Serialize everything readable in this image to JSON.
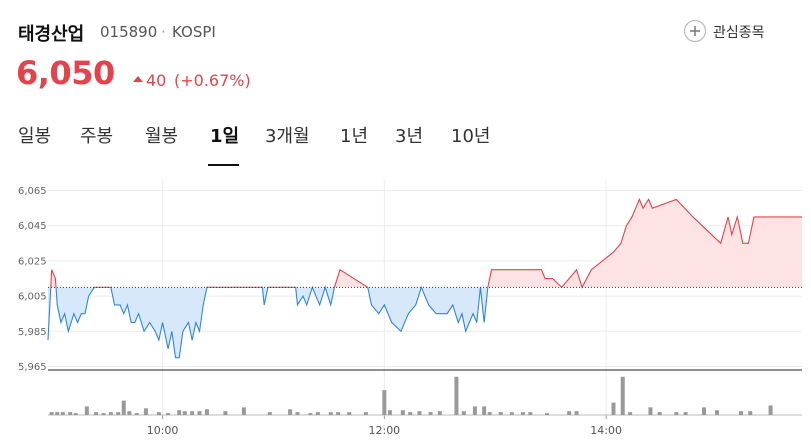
{
  "header": {
    "name": "태경산업",
    "code": "015890",
    "separator": "·",
    "market": "KOSPI",
    "watch_button": "관심종목"
  },
  "quote": {
    "price": "6,050",
    "change": "40",
    "change_percent": "(+0.67%)"
  },
  "tabs": {
    "items": [
      "일봉",
      "주봉",
      "월봉",
      "1일",
      "3개월",
      "1년",
      "3년",
      "10년"
    ],
    "active": 3
  },
  "chart_data": {
    "type": "line",
    "x": [
      538,
      540,
      542,
      543,
      545,
      547,
      549,
      552,
      554,
      556,
      558,
      560,
      563,
      572,
      574,
      577,
      579,
      581,
      583,
      585,
      587,
      590,
      593,
      596,
      598,
      600,
      603,
      605,
      607,
      609,
      611,
      614,
      616,
      618,
      620,
      622,
      624,
      654,
      655,
      657,
      672,
      673,
      676,
      678,
      681,
      685,
      688,
      691,
      693,
      696,
      711,
      713,
      717,
      720,
      724,
      729,
      733,
      737,
      740,
      744,
      748,
      754,
      757,
      760,
      762,
      764,
      768,
      770,
      772,
      774,
      776,
      778,
      805,
      807,
      811,
      816,
      824,
      827,
      832,
      844,
      848,
      851,
      854,
      858,
      860,
      863,
      865,
      878,
      887,
      902,
      906,
      908,
      911,
      914,
      917,
      920,
      946
    ],
    "series": [
      {
        "values": [
          5980,
          6020,
          6015,
          6000,
          5990,
          5995,
          5985,
          5995,
          5990,
          5995,
          5995,
          6005,
          6010,
          6010,
          6000,
          6000,
          5995,
          6000,
          5990,
          5990,
          5995,
          5985,
          5990,
          5985,
          5980,
          5990,
          5975,
          5985,
          5970,
          5970,
          5985,
          5990,
          5980,
          5990,
          5985,
          6000,
          6010,
          6010,
          6000,
          6010,
          6010,
          6000,
          6005,
          6000,
          6010,
          6000,
          6010,
          6000,
          6010,
          6020,
          6010,
          6000,
          5995,
          6000,
          5990,
          5985,
          5995,
          6000,
          6010,
          6000,
          5995,
          5995,
          6000,
          5990,
          5995,
          5985,
          5995,
          5990,
          6010,
          5990,
          6010,
          6020,
          6020,
          6015,
          6015,
          6010,
          6020,
          6010,
          6020,
          6030,
          6035,
          6045,
          6050,
          6060,
          6055,
          6060,
          6055,
          6060,
          6050,
          6035,
          6050,
          6040,
          6050,
          6035,
          6035,
          6050,
          6050
        ],
        "up_color": "#e5434b",
        "up_fill": "#fde3e3",
        "down_color": "#2f86e0",
        "down_fill": "#d7e8fa"
      }
    ],
    "prev_close": 6010,
    "xlim": [
      538,
      946
    ],
    "xticks": [
      {
        "value": 600,
        "label": "10:00"
      },
      {
        "value": 720,
        "label": "12:00"
      },
      {
        "value": 840,
        "label": "14:00"
      }
    ],
    "ylim": [
      5963,
      6071
    ],
    "yticks": [
      {
        "value": 6065,
        "label": "6,065"
      },
      {
        "value": 6045,
        "label": "6,045"
      },
      {
        "value": 6025,
        "label": "6,025"
      },
      {
        "value": 6005,
        "label": "6,005"
      },
      {
        "value": 5985,
        "label": "5,985"
      },
      {
        "value": 5965,
        "label": "5,965"
      }
    ],
    "grid": true,
    "volume": {
      "x": [
        540,
        543,
        546,
        550,
        553,
        559,
        564,
        568,
        572,
        576,
        579,
        582,
        586,
        591,
        598,
        603,
        609,
        612,
        616,
        620,
        624,
        634,
        644,
        658,
        669,
        673,
        680,
        684,
        691,
        695,
        701,
        710,
        720,
        723,
        730,
        734,
        739,
        745,
        750,
        759,
        763,
        769,
        774,
        777,
        783,
        789,
        795,
        799,
        808,
        820,
        824,
        844,
        849,
        853,
        864,
        869,
        878,
        883,
        893,
        900,
        913,
        918,
        929
      ],
      "values": [
        3,
        3,
        3,
        3,
        2,
        9,
        3,
        2,
        3,
        3,
        15,
        4,
        2,
        7,
        3,
        2,
        5,
        4,
        4,
        4,
        6,
        4,
        8,
        3,
        6,
        3,
        2,
        3,
        3,
        3,
        3,
        3,
        26,
        5,
        5,
        3,
        4,
        3,
        4,
        40,
        4,
        9,
        9,
        3,
        3,
        3,
        3,
        3,
        2,
        4,
        4,
        13,
        40,
        3,
        8,
        3,
        3,
        3,
        8,
        5,
        4,
        4,
        10
      ],
      "ylim": [
        0,
        45
      ],
      "color": "#999999"
    }
  }
}
